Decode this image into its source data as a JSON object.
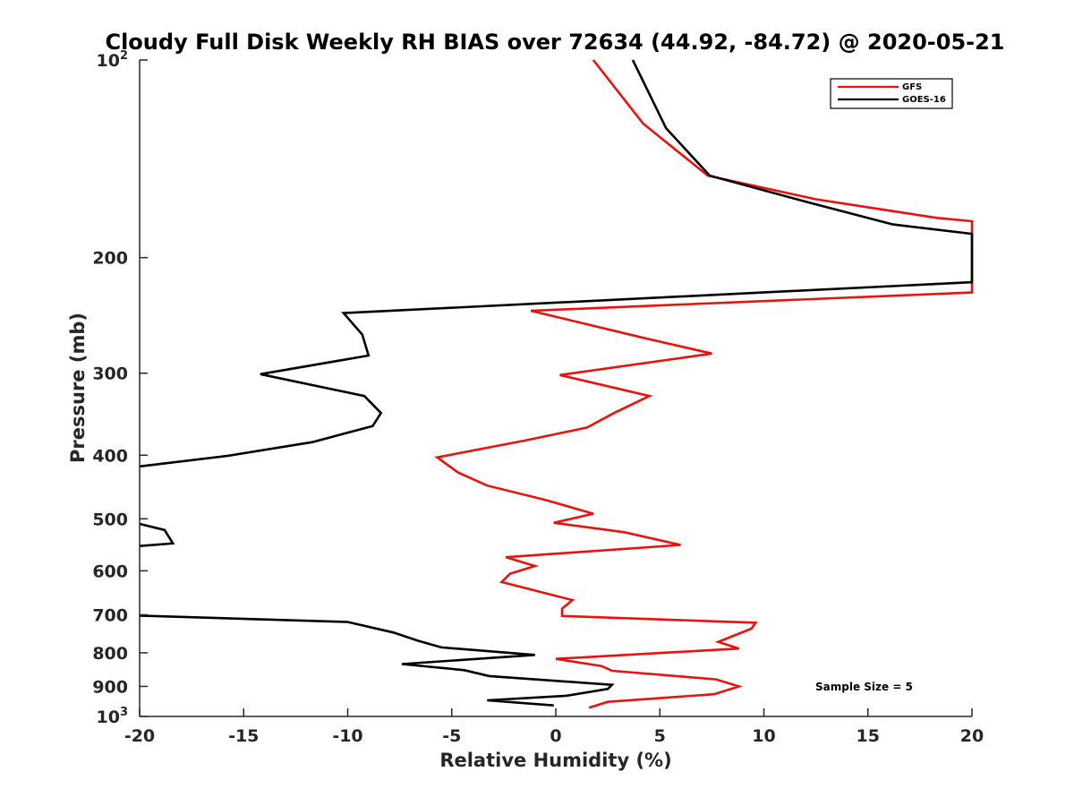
{
  "chart_data": {
    "type": "line",
    "title": "Cloudy Full Disk Weekly RH BIAS over 72634 (44.92, -84.72) @ 2020-05-21",
    "xlabel": "Relative Humidity (%)",
    "ylabel": "Pressure (mb)",
    "xlim": [
      -20,
      20
    ],
    "ylim": [
      100,
      1000
    ],
    "y_scale": "log",
    "y_reversed": true,
    "grid": false,
    "legend_position": "top-right",
    "xticks": [
      {
        "value": -20,
        "label": "-20"
      },
      {
        "value": -15,
        "label": "-15"
      },
      {
        "value": -10,
        "label": "-10"
      },
      {
        "value": -5,
        "label": "-5"
      },
      {
        "value": 0,
        "label": "0"
      },
      {
        "value": 5,
        "label": "5"
      },
      {
        "value": 10,
        "label": "10"
      },
      {
        "value": 15,
        "label": "15"
      },
      {
        "value": 20,
        "label": "20"
      }
    ],
    "yticks": [
      {
        "value": 100,
        "label": "10",
        "sup": "2"
      },
      {
        "value": 200,
        "label": "200"
      },
      {
        "value": 300,
        "label": "300"
      },
      {
        "value": 400,
        "label": "400"
      },
      {
        "value": 500,
        "label": "500"
      },
      {
        "value": 600,
        "label": "600"
      },
      {
        "value": 700,
        "label": "700"
      },
      {
        "value": 800,
        "label": "800"
      },
      {
        "value": 900,
        "label": "900"
      },
      {
        "value": 1000,
        "label": "10",
        "sup": "3"
      }
    ],
    "series": [
      {
        "name": "GFS",
        "color": "#e8120f",
        "points": [
          [
            1.8,
            100
          ],
          [
            4.2,
            125
          ],
          [
            7.3,
            150
          ],
          [
            12.5,
            163
          ],
          [
            18.3,
            174
          ],
          [
            20,
            176
          ],
          [
            20,
            226
          ],
          [
            -1.2,
            241
          ],
          [
            4.2,
            265
          ],
          [
            7.5,
            280
          ],
          [
            0.2,
            302
          ],
          [
            4.5,
            325
          ],
          [
            2.8,
            345
          ],
          [
            1.5,
            363
          ],
          [
            -1.5,
            380
          ],
          [
            -5.7,
            403
          ],
          [
            -4.7,
            425
          ],
          [
            -3.3,
            445
          ],
          [
            -0.5,
            468
          ],
          [
            1.8,
            491
          ],
          [
            -0.1,
            507
          ],
          [
            3.3,
            524
          ],
          [
            6.0,
            548
          ],
          [
            -2.4,
            572
          ],
          [
            -1.0,
            590
          ],
          [
            -2.2,
            606
          ],
          [
            -2.6,
            624
          ],
          [
            0.8,
            665
          ],
          [
            0.3,
            685
          ],
          [
            0.3,
            703
          ],
          [
            9.6,
            720
          ],
          [
            9.4,
            735
          ],
          [
            7.8,
            770
          ],
          [
            8.8,
            788
          ],
          [
            0.0,
            817
          ],
          [
            2.2,
            838
          ],
          [
            2.7,
            852
          ],
          [
            7.7,
            878
          ],
          [
            8.8,
            900
          ],
          [
            7.6,
            925
          ],
          [
            2.5,
            950
          ],
          [
            1.6,
            970
          ]
        ]
      },
      {
        "name": "GOES-16",
        "color": "#000000",
        "points": [
          [
            3.7,
            100
          ],
          [
            5.3,
            127
          ],
          [
            7.4,
            150
          ],
          [
            12.2,
            165
          ],
          [
            16.2,
            178
          ],
          [
            20,
            184
          ],
          [
            20,
            218
          ],
          [
            -10.2,
            243
          ],
          [
            -9.3,
            262
          ],
          [
            -9.0,
            282
          ],
          [
            -14.2,
            301
          ],
          [
            -9.2,
            325
          ],
          [
            -8.4,
            345
          ],
          [
            -8.8,
            361
          ],
          [
            -11.7,
            382
          ],
          [
            -15.8,
            401
          ],
          [
            -20,
            416
          ],
          null,
          [
            -20,
            509
          ],
          [
            -18.8,
            520
          ],
          [
            -18.4,
            545
          ],
          [
            -20,
            550
          ],
          null,
          [
            -20,
            702
          ],
          [
            -10.0,
            718
          ],
          [
            -7.8,
            745
          ],
          [
            -6.6,
            767
          ],
          [
            -5.5,
            785
          ],
          [
            -1.0,
            806
          ],
          [
            -7.4,
            832
          ],
          [
            -4.4,
            850
          ],
          [
            -3.2,
            868
          ],
          [
            2.7,
            895
          ],
          [
            2.5,
            908
          ],
          [
            0.5,
            930
          ],
          [
            -3.3,
            945
          ],
          [
            -0.1,
            962
          ]
        ]
      }
    ],
    "annotations": [
      "Sample Size = 5"
    ]
  }
}
